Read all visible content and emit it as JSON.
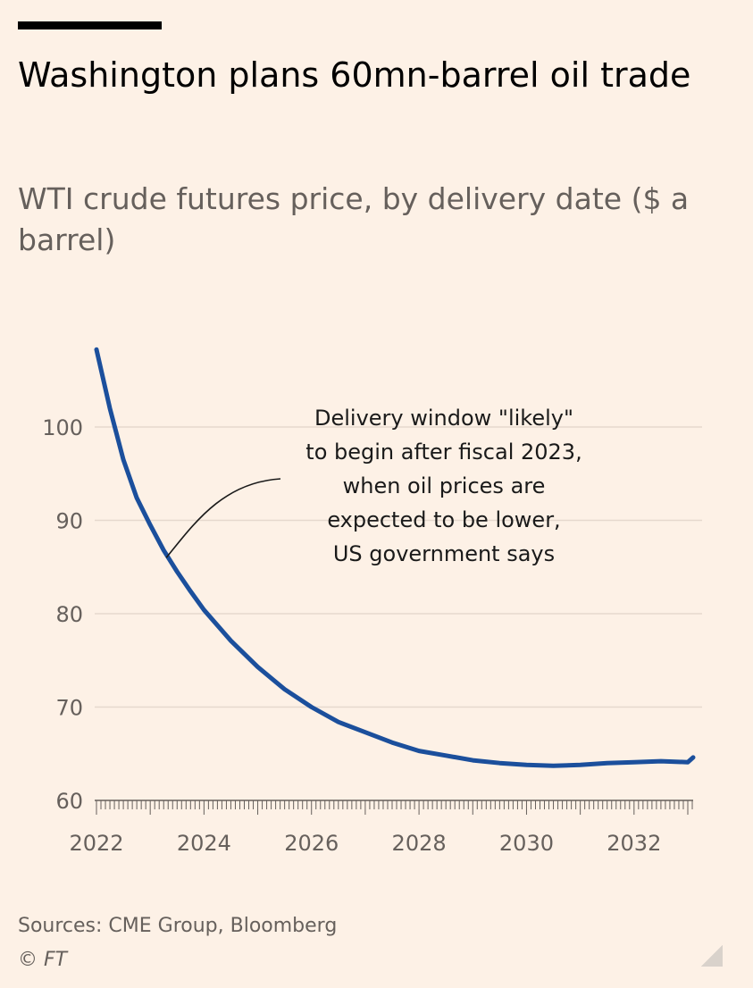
{
  "header": {
    "title": "Washington plans 60mn-barrel oil trade",
    "subtitle": "WTI crude futures price, by delivery date ($ a barrel)"
  },
  "footer": {
    "sources": "Sources: CME Group, Bloomberg",
    "credit": "© FT"
  },
  "colors": {
    "line": "#1b4f9c",
    "grid": "#e6d9ce",
    "axis": "#66605c",
    "background": "#fdf1e6"
  },
  "chart_data": {
    "type": "line",
    "title": "WTI crude futures price, by delivery date ($ a barrel)",
    "xlabel": "",
    "ylabel": "",
    "ylim": [
      60,
      110
    ],
    "xlim": [
      2022,
      2033.1
    ],
    "y_ticks": [
      60,
      70,
      80,
      90,
      100
    ],
    "x_ticks": [
      2022,
      2024,
      2026,
      2028,
      2030,
      2032
    ],
    "y_tick_labels": [
      "60",
      "70",
      "80",
      "90",
      "100"
    ],
    "x_tick_labels": [
      "2022",
      "2024",
      "2026",
      "2028",
      "2030",
      "2032"
    ],
    "grid": true,
    "series": [
      {
        "name": "",
        "x": [
          2022.0,
          2022.25,
          2022.5,
          2022.75,
          2023.0,
          2023.25,
          2023.5,
          2023.75,
          2024.0,
          2024.5,
          2025.0,
          2025.5,
          2026.0,
          2026.5,
          2027.0,
          2027.5,
          2028.0,
          2028.5,
          2029.0,
          2029.5,
          2030.0,
          2030.5,
          2031.0,
          2031.5,
          2032.0,
          2032.5,
          2033.0,
          2033.1
        ],
        "values": [
          108.3,
          102.0,
          96.5,
          92.4,
          89.5,
          86.8,
          84.5,
          82.4,
          80.4,
          77.1,
          74.3,
          71.9,
          70.0,
          68.4,
          67.3,
          66.2,
          65.3,
          64.8,
          64.3,
          64.0,
          63.8,
          63.7,
          63.8,
          64.0,
          64.1,
          64.2,
          64.1,
          64.6
        ]
      }
    ],
    "annotations": [
      {
        "lines": [
          "Delivery window \"likely\"",
          "to begin after fiscal 2023,",
          "when oil prices are",
          "expected to be lower,",
          "US government says"
        ],
        "x": 2023.3,
        "y": 86.0
      }
    ]
  }
}
